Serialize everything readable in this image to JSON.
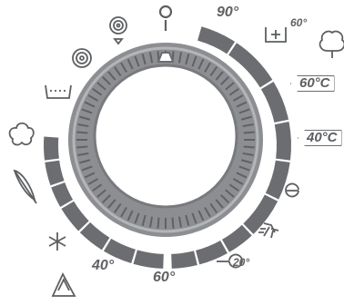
{
  "dial": {
    "labels": {
      "top_90": "90°",
      "cotton_eco_60": "60°",
      "boxed_60c": "60°C",
      "boxed_40c": "40°C",
      "wool_20": "20°",
      "bottom_60": "60°",
      "bottom_40": "40°"
    },
    "colors": {
      "segment": "#6b6d70",
      "knob_outer": "#8a8c8f",
      "knob_inner": "#ffffff",
      "icon": "#5d5f62"
    },
    "icons": [
      "power-off-icon",
      "spin-drain-icon",
      "rinse-icon",
      "prewash-icon",
      "synthetics-icon",
      "delicates-icon",
      "cold-wash-icon",
      "easy-iron-icon",
      "cotton-eco-icon",
      "wool-icon",
      "quick-wash-icon",
      "eco-icon"
    ]
  }
}
